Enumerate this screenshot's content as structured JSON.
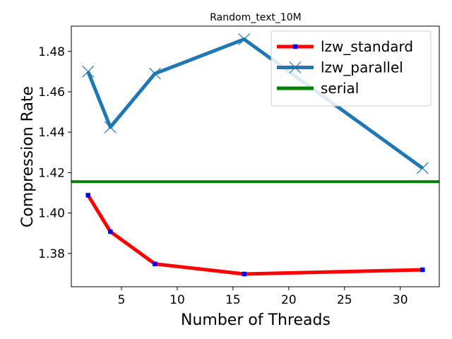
{
  "chart_data": {
    "type": "line",
    "title": "Random_text_10M",
    "xlabel": "Number of Threads",
    "ylabel": "Compression Rate",
    "xlim": [
      0.5,
      33.5
    ],
    "ylim": [
      1.3635,
      1.4925
    ],
    "xticks": [
      5,
      10,
      15,
      20,
      25,
      30
    ],
    "yticks": [
      1.38,
      1.4,
      1.42,
      1.44,
      1.46,
      1.48
    ],
    "xtick_labels": [
      "5",
      "10",
      "15",
      "20",
      "25",
      "30"
    ],
    "ytick_labels": [
      "1.38",
      "1.40",
      "1.42",
      "1.44",
      "1.46",
      "1.48"
    ],
    "legend_position": "top-right",
    "series": [
      {
        "name": "lzw_standard",
        "color": "#ff0000",
        "marker_color": "#0000ff",
        "marker": "square",
        "x": [
          2,
          4,
          8,
          16,
          32
        ],
        "y": [
          1.4088,
          1.3908,
          1.3748,
          1.3698,
          1.3719
        ]
      },
      {
        "name": "lzw_parallel",
        "color": "#1f77b4",
        "marker_color": "#1f77b4",
        "marker": "x",
        "x": [
          2,
          4,
          8,
          16,
          32
        ],
        "y": [
          1.47,
          1.4425,
          1.469,
          1.486,
          1.4222
        ]
      },
      {
        "name": "serial",
        "color": "#008000",
        "marker": "none",
        "hline": 1.4155
      }
    ]
  }
}
